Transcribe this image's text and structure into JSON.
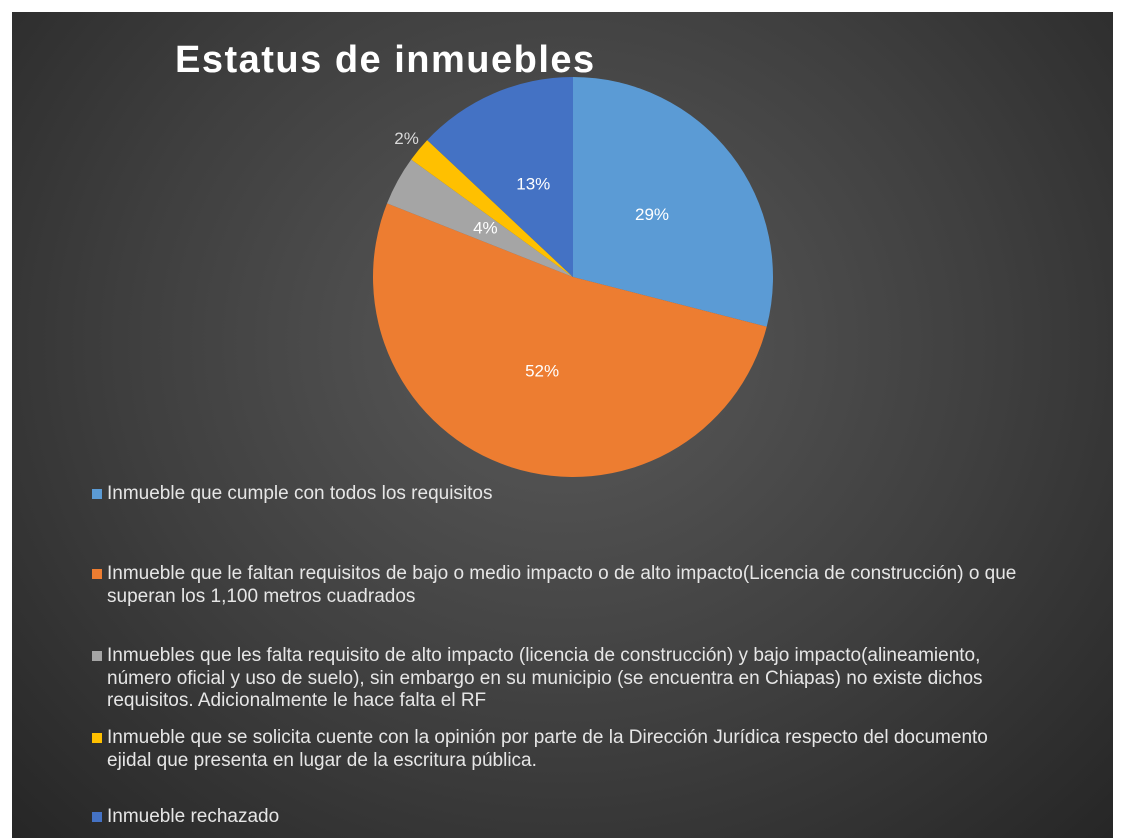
{
  "chart_data": {
    "type": "pie",
    "title": "Estatus de inmuebles",
    "categories": [
      "Inmueble que cumple con todos los requisitos",
      "Inmueble que le faltan requisitos de bajo o medio impacto o de alto impacto(Licencia de construcción) o que superan los 1,100 metros cuadrados",
      "Inmuebles que les falta requisito de alto impacto (licencia de construcción) y bajo impacto(alineamiento, número oficial y uso de suelo), sin embargo en su municipio (se encuentra en Chiapas) no existe dichos requisitos. Adicionalmente le hace falta el RF",
      "Inmueble que se solicita cuente con la opinión por parte de la Dirección Jurídica respecto del documento ejidal que presenta en lugar de la escritura pública.",
      "Inmueble rechazado"
    ],
    "values": [
      29,
      52,
      4,
      2,
      13
    ],
    "value_labels": [
      "29%",
      "52%",
      "4%",
      "2%",
      "13%"
    ],
    "colors": [
      "#5b9bd5",
      "#ed7d31",
      "#a5a5a5",
      "#ffc000",
      "#4472c4"
    ],
    "legend": "bottom"
  }
}
